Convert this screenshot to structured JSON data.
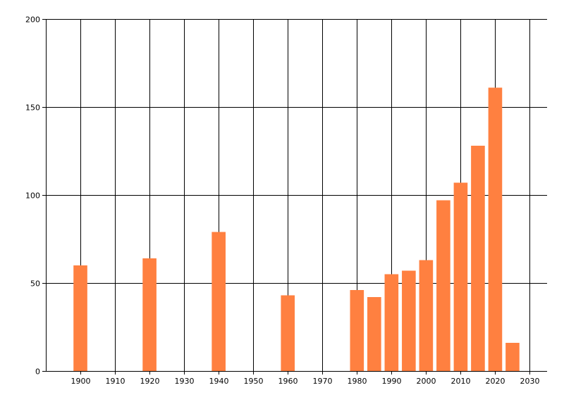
{
  "chart_data": {
    "type": "bar",
    "title": "",
    "xlabel": "",
    "ylabel": "",
    "x": [
      1900,
      1920,
      1940,
      1960,
      1980,
      1985,
      1990,
      1995,
      2000,
      2005,
      2010,
      2015,
      2020,
      2025
    ],
    "values": [
      60,
      64,
      79,
      43,
      46,
      42,
      55,
      57,
      63,
      97,
      107,
      128,
      161,
      16
    ],
    "xlim": [
      1890,
      2035
    ],
    "ylim": [
      0,
      200
    ],
    "xticks": [
      1900,
      1910,
      1920,
      1930,
      1940,
      1950,
      1960,
      1970,
      1980,
      1990,
      2000,
      2010,
      2020,
      2030
    ],
    "yticks": [
      0,
      50,
      100,
      150,
      200
    ],
    "grid": true,
    "bar_color": "#FF8040",
    "grid_color": "#000000"
  }
}
